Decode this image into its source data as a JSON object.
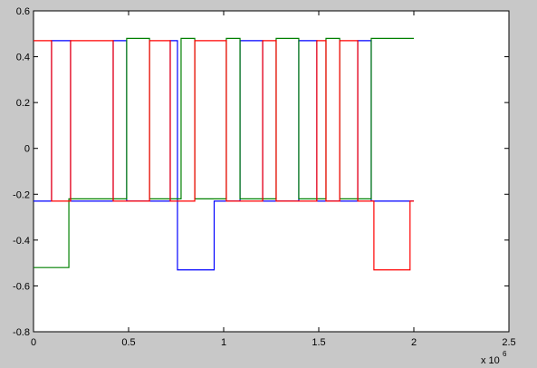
{
  "chart_data": {
    "type": "line",
    "xlim": [
      0,
      2.5
    ],
    "xticks": [
      0,
      0.5,
      1,
      1.5,
      2,
      2.5
    ],
    "ylim": [
      -0.8,
      0.6
    ],
    "yticks": [
      -0.8,
      -0.6,
      -0.4,
      -0.2,
      0,
      0.2,
      0.4,
      0.6
    ],
    "x_multiplier": {
      "base": "x 10",
      "exponent": "6"
    },
    "grid": false,
    "series": [
      {
        "color": "#0000ff",
        "x": [
          0,
          0.095,
          0.095,
          0.195,
          0.195,
          0.419,
          0.419,
          0.49,
          0.49,
          0.719,
          0.719,
          0.757,
          0.757,
          0.95,
          0.95,
          1.086,
          1.086,
          1.205,
          1.205,
          1.395,
          1.395,
          1.49,
          1.49,
          1.705,
          1.705,
          1.776,
          1.776,
          2.0
        ],
        "values": [
          -0.23,
          -0.23,
          0.47,
          0.47,
          -0.23,
          -0.23,
          0.47,
          0.47,
          -0.23,
          -0.23,
          0.47,
          0.47,
          -0.53,
          -0.53,
          -0.23,
          -0.23,
          0.47,
          0.47,
          -0.23,
          -0.23,
          0.47,
          0.47,
          -0.23,
          -0.23,
          0.47,
          0.47,
          -0.23,
          -0.23
        ]
      },
      {
        "color": "#008000",
        "x": [
          0,
          0.186,
          0.186,
          0.49,
          0.49,
          0.61,
          0.61,
          0.776,
          0.776,
          0.848,
          0.848,
          1.014,
          1.014,
          1.086,
          1.086,
          1.276,
          1.276,
          1.395,
          1.395,
          1.538,
          1.538,
          1.61,
          1.61,
          1.776,
          1.776,
          2.0
        ],
        "values": [
          -0.52,
          -0.52,
          -0.22,
          -0.22,
          0.48,
          0.48,
          -0.22,
          -0.22,
          0.48,
          0.48,
          -0.22,
          -0.22,
          0.48,
          0.48,
          -0.22,
          -0.22,
          0.48,
          0.48,
          -0.22,
          -0.22,
          0.48,
          0.48,
          -0.22,
          -0.22,
          0.48,
          0.48
        ]
      },
      {
        "color": "#ff0000",
        "x": [
          0,
          0.095,
          0.095,
          0.195,
          0.195,
          0.419,
          0.419,
          0.61,
          0.61,
          0.719,
          0.719,
          0.848,
          0.848,
          1.014,
          1.014,
          1.205,
          1.205,
          1.276,
          1.276,
          1.49,
          1.49,
          1.538,
          1.538,
          1.61,
          1.61,
          1.705,
          1.705,
          1.79,
          1.79,
          1.98,
          1.98,
          2.0
        ],
        "values": [
          0.47,
          0.47,
          -0.23,
          -0.23,
          0.47,
          0.47,
          -0.23,
          -0.23,
          0.47,
          0.47,
          -0.23,
          -0.23,
          0.47,
          0.47,
          -0.23,
          -0.23,
          0.47,
          0.47,
          -0.23,
          -0.23,
          0.47,
          0.47,
          -0.23,
          -0.23,
          0.47,
          0.47,
          -0.23,
          -0.23,
          -0.53,
          -0.53,
          -0.23,
          -0.23
        ]
      }
    ]
  }
}
